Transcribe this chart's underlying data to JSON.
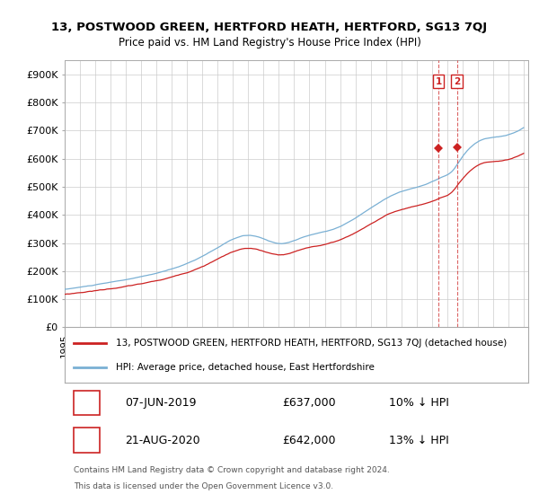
{
  "title": "13, POSTWOOD GREEN, HERTFORD HEATH, HERTFORD, SG13 7QJ",
  "subtitle": "Price paid vs. HM Land Registry's House Price Index (HPI)",
  "ylim": [
    0,
    950000
  ],
  "yticks": [
    0,
    100000,
    200000,
    300000,
    400000,
    500000,
    600000,
    700000,
    800000,
    900000
  ],
  "ytick_labels": [
    "£0",
    "£100K",
    "£200K",
    "£300K",
    "£400K",
    "£500K",
    "£600K",
    "£700K",
    "£800K",
    "£900K"
  ],
  "hpi_color": "#7ab0d4",
  "price_color": "#cc2222",
  "marker_color": "#cc2222",
  "background_color": "#ffffff",
  "grid_color": "#cccccc",
  "transaction1": {
    "label": "1",
    "date": "07-JUN-2019",
    "price": "£637,000",
    "hpi_diff": "10% ↓ HPI",
    "year": 2019.44,
    "price_val": 637000
  },
  "transaction2": {
    "label": "2",
    "date": "21-AUG-2020",
    "price": "£642,000",
    "hpi_diff": "13% ↓ HPI",
    "year": 2020.64,
    "price_val": 642000
  },
  "legend_line1": "13, POSTWOOD GREEN, HERTFORD HEATH, HERTFORD, SG13 7QJ (detached house)",
  "legend_line2": "HPI: Average price, detached house, East Hertfordshire",
  "footer1": "Contains HM Land Registry data © Crown copyright and database right 2024.",
  "footer2": "This data is licensed under the Open Government Licence v3.0."
}
